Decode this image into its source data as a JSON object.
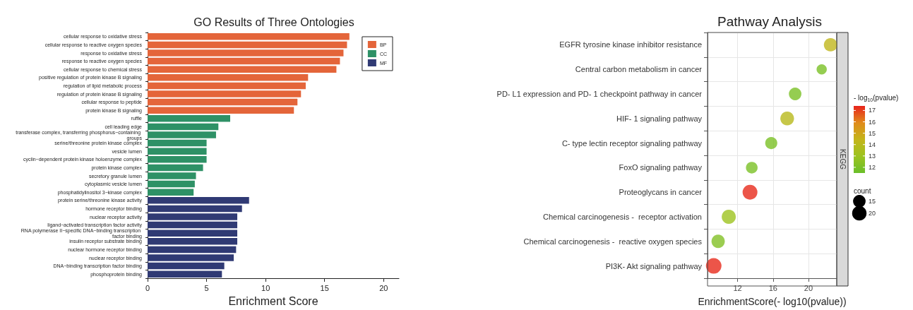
{
  "chart_data": [
    {
      "type": "bar",
      "orientation": "horizontal",
      "title": "GO Results of Three Ontologies",
      "xlabel": "Enrichment Score",
      "categories": [
        "cellular response to oxidative stress",
        "cellular response to reactive oxygen species",
        "response to oxidative stress",
        "response to reactive oxygen species",
        "cellular response to chemical stress",
        "positive regulation of protein kinase B signaling",
        "regulation of lipid metabolic process",
        "regulation of protein kinase B signaling",
        "cellular response to peptide",
        "protein kinase B signaling",
        "ruffle",
        "cell leading edge",
        "transferase complex, transferring phosphorus−containing groups",
        "serine/threonine protein kinase complex",
        "vesicle lumen",
        "cyclin−dependent protein kinase holoenzyme complex",
        "protein kinase complex",
        "secretory granule lumen",
        "cytoplasmic vesicle lumen",
        "phosphatidylinositol 3−kinase complex",
        "protein serine/threonine kinase activity",
        "hormone receptor binding",
        "nuclear receptor activity",
        "ligand−activated transcription factor activity",
        "RNA polymerase II−specific DNA−binding transcription factor binding",
        "insulin receptor substrate binding",
        "nuclear hormone receptor binding",
        "nuclear receptor binding",
        "DNA−binding transcription factor binding",
        "phosphoprotein binding"
      ],
      "series": [
        {
          "name": "BP",
          "color": "#e4653a",
          "values": [
            17.1,
            16.9,
            16.6,
            16.3,
            16.0,
            13.6,
            13.4,
            13.0,
            12.7,
            12.4,
            null,
            null,
            null,
            null,
            null,
            null,
            null,
            null,
            null,
            null,
            null,
            null,
            null,
            null,
            null,
            null,
            null,
            null,
            null,
            null
          ]
        },
        {
          "name": "CC",
          "color": "#2e9166",
          "values": [
            null,
            null,
            null,
            null,
            null,
            null,
            null,
            null,
            null,
            null,
            7.0,
            6.0,
            5.8,
            5.0,
            5.0,
            5.0,
            4.7,
            4.1,
            4.0,
            3.9,
            null,
            null,
            null,
            null,
            null,
            null,
            null,
            null,
            null,
            null
          ]
        },
        {
          "name": "MF",
          "color": "#303a74",
          "values": [
            null,
            null,
            null,
            null,
            null,
            null,
            null,
            null,
            null,
            null,
            null,
            null,
            null,
            null,
            null,
            null,
            null,
            null,
            null,
            null,
            8.6,
            8.0,
            7.6,
            7.6,
            7.6,
            7.6,
            7.5,
            7.3,
            6.5,
            6.3
          ]
        }
      ],
      "xlim": [
        0,
        21.3
      ],
      "xticks": [
        0,
        5,
        10,
        15,
        20
      ],
      "legend": "top right",
      "grid": false
    },
    {
      "type": "scatter",
      "orientation": "horizontal",
      "title": "Pathway Analysis",
      "xlabel": "EnrichmentScore(- log10(pvalue))",
      "categories": [
        "EGFR tyrosine kinase inhibitor resistance",
        "Central carbon metabolism in cancer",
        "PD- L1 expression and PD- 1 checkpoint pathway in cancer",
        "HIF- 1 signaling pathway",
        "C- type lectin receptor signaling pathway",
        "FoxO signaling pathway",
        "Proteoglycans in cancer",
        "Chemical carcinogenesis -  receptor activation",
        "Chemical carcinogenesis -  reactive oxygen species",
        "PI3K- Akt signaling pathway"
      ],
      "values": [
        22.5,
        21.5,
        18.5,
        17.6,
        15.8,
        13.6,
        13.4,
        11.0,
        9.8,
        9.3
      ],
      "cvalues": [
        14.3,
        12.0,
        12.0,
        14.0,
        12.0,
        12.0,
        17.3,
        13.0,
        12.2,
        17.3
      ],
      "sizes": [
        17,
        10,
        15,
        18,
        14,
        13,
        21,
        19,
        17,
        23
      ],
      "size_legend": [
        15,
        20
      ],
      "legend_title": "count",
      "clabel": "- log$_{10}$(pvalue)",
      "clim": [
        11.5,
        17.4
      ],
      "cticks": [
        12,
        13,
        14,
        15,
        16,
        17
      ],
      "xlim": [
        8.6,
        23.2
      ],
      "xticks": [
        12,
        16,
        20
      ],
      "grid": true,
      "annotations": [
        "KEGG"
      ]
    }
  ]
}
